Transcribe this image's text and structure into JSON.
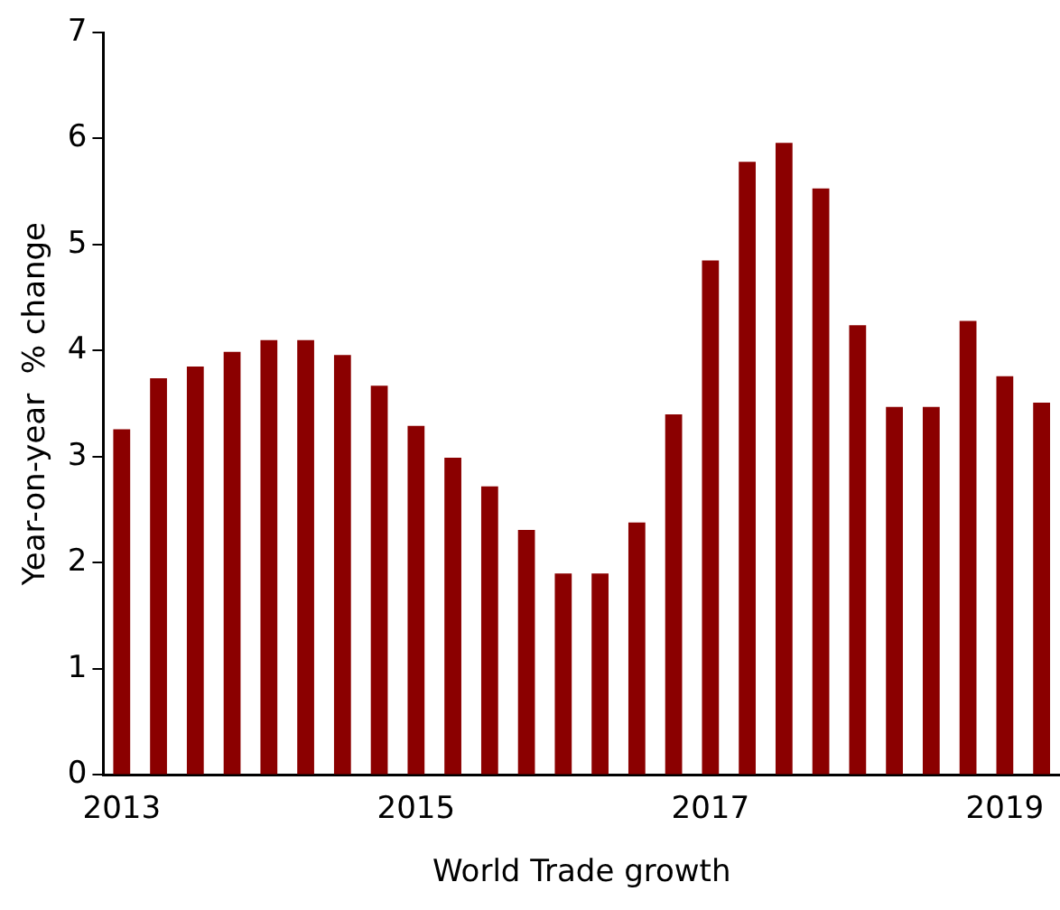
{
  "chart_data": {
    "type": "bar",
    "xlabel": "World Trade growth",
    "ylabel": "Year-on-year  % change",
    "categories": [
      "2013",
      null,
      null,
      null,
      null,
      null,
      null,
      null,
      "2015",
      null,
      null,
      null,
      null,
      null,
      null,
      null,
      "2017",
      null,
      null,
      null,
      null,
      null,
      null,
      null,
      "2019",
      null
    ],
    "series": [
      {
        "colors": [
          "#8b0000",
          "#8b0000",
          "#8b0000",
          "#8b0000",
          "#8b0000",
          "#8b0000",
          "#8b0000",
          "#8b0000",
          "#8b0000",
          "#8b0000",
          "#8b0000",
          "#8b0000",
          "#8b0000",
          "#8b0000",
          "#8b0000",
          "#8b0000",
          "#8b0000",
          "#8b0000",
          "#8b0000",
          "#8b0000",
          "#8b0000",
          "#8b0000",
          "#8b0000",
          "#8b0000",
          "#8b0000",
          "#8b0000"
        ],
        "values": [
          3.26,
          3.74,
          3.85,
          3.99,
          4.1,
          4.1,
          3.96,
          3.67,
          3.29,
          2.99,
          2.72,
          2.31,
          1.9,
          1.9,
          2.38,
          3.4,
          4.85,
          5.78,
          5.96,
          5.53,
          4.24,
          3.47,
          3.47,
          4.28,
          3.76,
          3.51
        ]
      }
    ],
    "ylim": [
      0,
      7
    ],
    "yticks": [
      0,
      1,
      2,
      3,
      4,
      5,
      6,
      7
    ],
    "grid": false,
    "legend": false
  }
}
